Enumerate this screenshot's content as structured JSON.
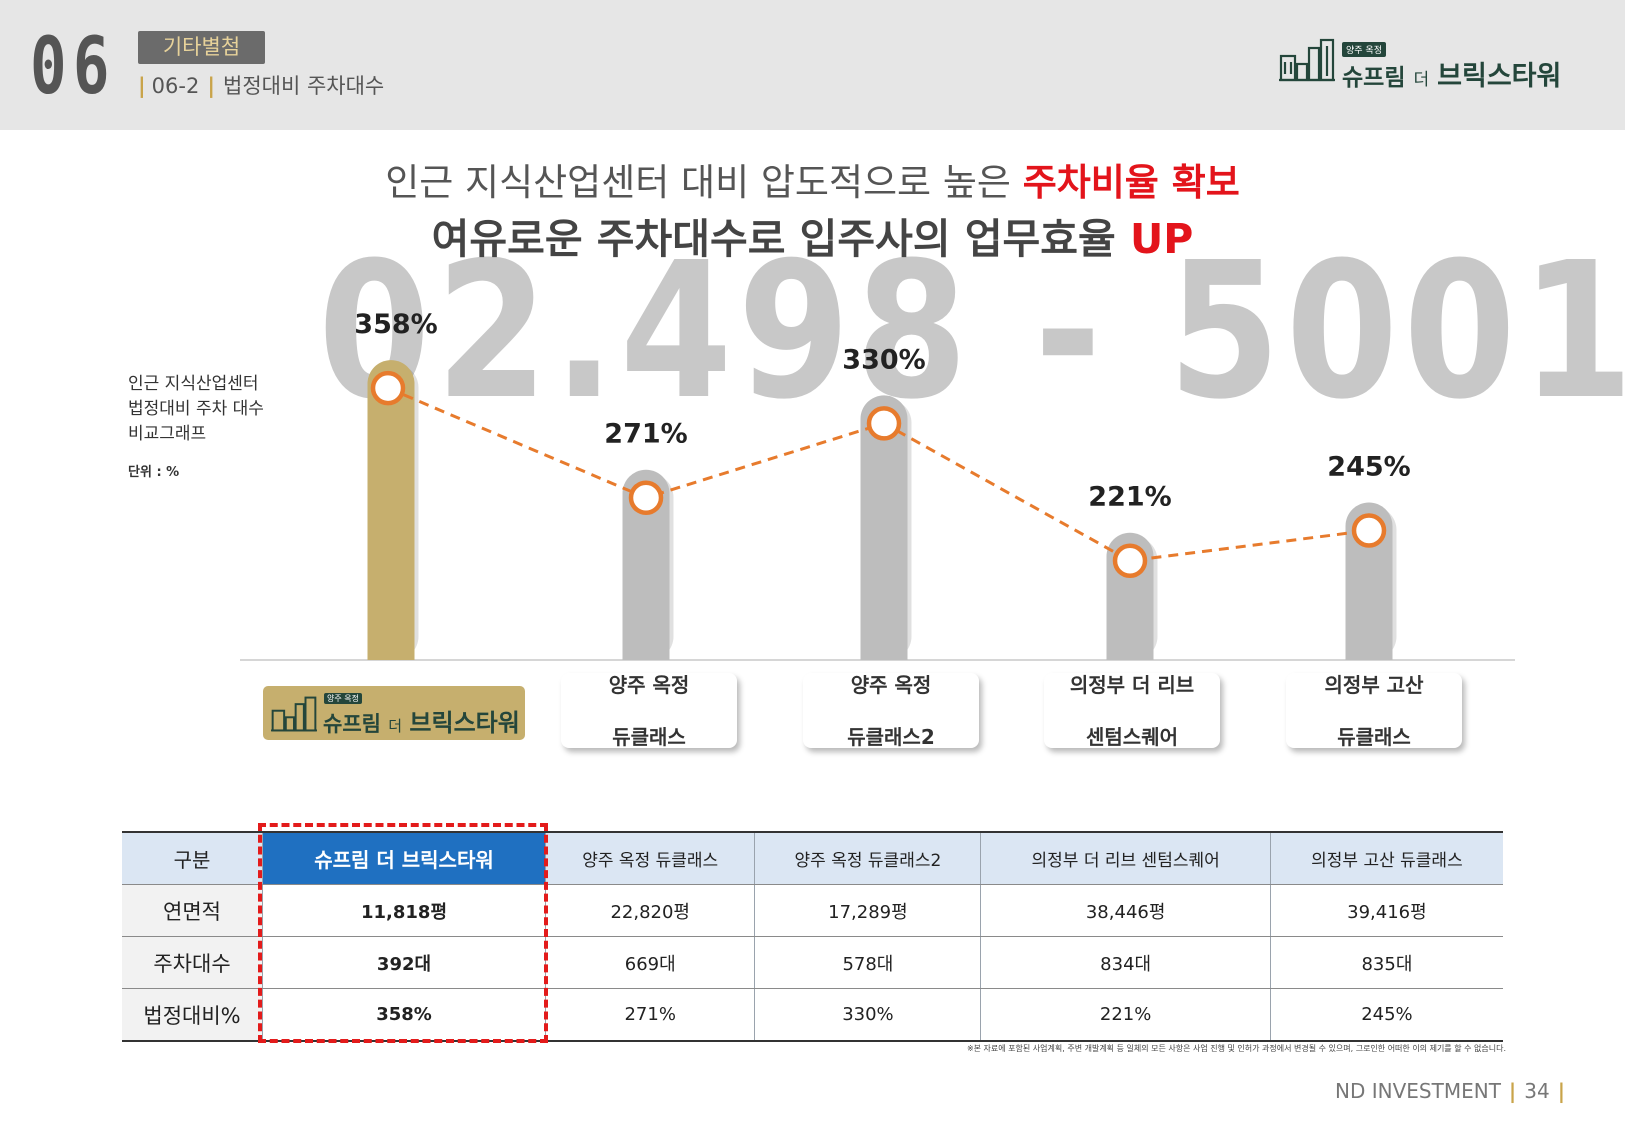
{
  "header": {
    "section_number": "06",
    "badge": "기타별첨",
    "sub_code": "06-2",
    "sub_title": "법정대비 주차대수",
    "logo_tag": "양주 옥정",
    "logo_name_a": "슈프림",
    "logo_name_b": "더",
    "logo_name_c": "브릭스타워"
  },
  "headline": {
    "line1_prefix": "인근 지식산업센터 대비 압도적으로 높은 ",
    "line1_highlight": "주차비율 확보",
    "line2_prefix": "여유로운 주차대수로 입주사의 업무효율 ",
    "line2_highlight": "UP"
  },
  "watermark": "02.498 - 5001",
  "graph_note": {
    "line1": "인근 지식산업센터",
    "line2": "법정대비 주차 대수",
    "line3": "비교그래프",
    "unit": "단위 : %"
  },
  "categories": {
    "c2_l1": "양주 옥정",
    "c2_l2": "듀클래스",
    "c3_l1": "양주 옥정",
    "c3_l2": "듀클래스2",
    "c4_l1": "의정부 더 리브",
    "c4_l2": "센텀스퀘어",
    "c5_l1": "의정부 고산",
    "c5_l2": "듀클래스"
  },
  "chart_data": {
    "type": "bar",
    "categories": [
      "슈프림 더 브릭스타워",
      "양주 옥정 듀클래스",
      "양주 옥정 듀클래스2",
      "의정부 더 리브 센텀스퀘어",
      "의정부 고산 듀클래스"
    ],
    "values": [
      358,
      271,
      330,
      221,
      245
    ],
    "value_labels": [
      "358%",
      "271%",
      "330%",
      "221%",
      "245%"
    ],
    "ylabel": "",
    "unit": "%",
    "ylim": [
      0,
      400
    ],
    "overlay": "dashed line with circle markers through bar tops",
    "colors": {
      "highlight_bar": "#c6af6e",
      "other_bars": "#bdbdbd",
      "line": "#e77b2d"
    }
  },
  "table": {
    "headers": [
      "구분",
      "슈프림 더 브릭스타워",
      "양주 옥정 듀클래스",
      "양주 옥정 듀클래스2",
      "의정부 더 리브 센텀스퀘어",
      "의정부 고산 듀클래스"
    ],
    "rows": [
      [
        "연면적",
        "11,818평",
        "22,820평",
        "17,289평",
        "38,446평",
        "39,416평"
      ],
      [
        "주차대수",
        "392대",
        "669대",
        "578대",
        "834대",
        "835대"
      ],
      [
        "법정대비%",
        "358%",
        "271%",
        "330%",
        "221%",
        "245%"
      ]
    ]
  },
  "disclaimer": "※본 자료에 포함된 사업계획, 주변 개발계획 등 일체의 모든 사항은 사업 진행 및 인허가 과정에서 변경될 수 있으며, 그로인한 어떠한 이의 제기를 할 수 없습니다.",
  "footer": {
    "company": "ND INVESTMENT",
    "page": "34"
  }
}
